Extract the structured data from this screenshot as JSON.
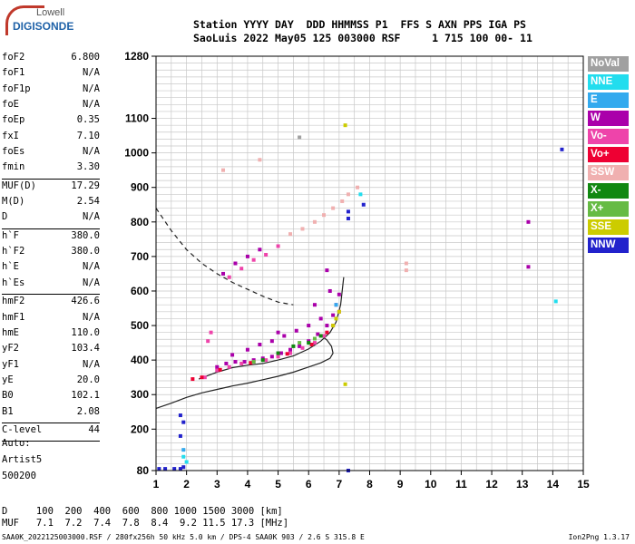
{
  "logo": {
    "line1": "Lowell",
    "line2": "DIGISONDE"
  },
  "header": {
    "line1": "Station YYYY DAY  DDD HHMMSS P1  FFS S AXN PPS IGA PS",
    "line2": "SaoLuis 2022 May05 125 003000 RSF     1 715 100 00- 11"
  },
  "params": [
    {
      "name": "foF2",
      "value": "6.800"
    },
    {
      "name": "foF1",
      "value": "N/A"
    },
    {
      "name": "foF1p",
      "value": "N/A"
    },
    {
      "name": "foE",
      "value": "N/A"
    },
    {
      "name": "foEp",
      "value": "0.35"
    },
    {
      "name": "fxI",
      "value": "7.10"
    },
    {
      "name": "foEs",
      "value": "N/A"
    },
    {
      "name": "fmin",
      "value": "3.30"
    },
    {
      "sep": true
    },
    {
      "name": "MUF(D)",
      "value": "17.29"
    },
    {
      "name": "M(D)",
      "value": "2.54"
    },
    {
      "name": "D",
      "value": "N/A"
    },
    {
      "sep": true
    },
    {
      "name": "h`F",
      "value": "380.0"
    },
    {
      "name": "h`F2",
      "value": "380.0"
    },
    {
      "name": "h`E",
      "value": "N/A"
    },
    {
      "name": "h`Es",
      "value": "N/A"
    },
    {
      "sep": true
    },
    {
      "name": "hmF2",
      "value": "426.6"
    },
    {
      "name": "hmF1",
      "value": "N/A"
    },
    {
      "name": "hmE",
      "value": "110.0"
    },
    {
      "name": "yF2",
      "value": "103.4"
    },
    {
      "name": "yF1",
      "value": "N/A"
    },
    {
      "name": "yE",
      "value": "20.0"
    },
    {
      "name": "B0",
      "value": "102.1"
    },
    {
      "name": "B1",
      "value": "2.08"
    },
    {
      "sep": true
    },
    {
      "name": "C-level",
      "value": "44"
    },
    {
      "sep": true
    }
  ],
  "auto": {
    "line1": "Auto:",
    "line2": "Artist5",
    "line3": "500200"
  },
  "bottom": {
    "line1": "D     100  200  400  600  800 1000 1500 3000 [km]",
    "line2": "MUF   7.1  7.2  7.4  7.8  8.4  9.2 11.5 17.3 [MHz]"
  },
  "footer": {
    "left": "SAA0K_2022125003000.RSF / 280fx256h 50 kHz 5.0 km / DPS-4 SAA0K 903 / 2.6 S 315.8 E",
    "right": "Ion2Png 1.3.17"
  },
  "legend": [
    {
      "label": "NoVal",
      "color": "#a0a0a0"
    },
    {
      "label": "NNE",
      "color": "#22ddee"
    },
    {
      "label": "E",
      "color": "#33aaee"
    },
    {
      "label": "W",
      "color": "#aa00aa"
    },
    {
      "label": "Vo-",
      "color": "#ee44aa"
    },
    {
      "label": "Vo+",
      "color": "#ee0033"
    },
    {
      "label": "SSW",
      "color": "#f0b0b0"
    },
    {
      "label": "X-",
      "color": "#118811"
    },
    {
      "label": "X+",
      "color": "#66bb44"
    },
    {
      "label": "SSE",
      "color": "#cccc00"
    },
    {
      "label": "NNW",
      "color": "#2222cc"
    }
  ],
  "chart_data": {
    "type": "scatter",
    "title": "",
    "xlabel": "",
    "ylabel": "",
    "xlim": [
      1,
      15
    ],
    "ylim": [
      80,
      1280
    ],
    "x_ticks": [
      1,
      2,
      3,
      4,
      5,
      6,
      7,
      8,
      9,
      10,
      11,
      12,
      13,
      14,
      15
    ],
    "y_ticks": [
      80,
      200,
      300,
      400,
      500,
      600,
      700,
      800,
      900,
      1000,
      1100,
      1280
    ],
    "grid": true,
    "series": [
      {
        "name": "W",
        "color": "#aa00aa",
        "points": [
          [
            3.0,
            380
          ],
          [
            3.3,
            390
          ],
          [
            3.6,
            395
          ],
          [
            3.9,
            395
          ],
          [
            4.2,
            400
          ],
          [
            4.5,
            405
          ],
          [
            4.8,
            410
          ],
          [
            5.1,
            420
          ],
          [
            5.4,
            430
          ],
          [
            5.7,
            440
          ],
          [
            6.0,
            455
          ],
          [
            6.3,
            475
          ],
          [
            6.6,
            500
          ],
          [
            6.8,
            530
          ],
          [
            6.9,
            560
          ],
          [
            7.0,
            590
          ],
          [
            4.0,
            430
          ],
          [
            4.4,
            445
          ],
          [
            4.8,
            455
          ],
          [
            5.2,
            470
          ],
          [
            5.6,
            485
          ],
          [
            6.0,
            500
          ],
          [
            3.5,
            415
          ],
          [
            5.0,
            480
          ],
          [
            6.4,
            520
          ],
          [
            6.7,
            600
          ],
          [
            6.6,
            660
          ],
          [
            6.2,
            560
          ],
          [
            3.2,
            650
          ],
          [
            3.6,
            680
          ],
          [
            4.0,
            700
          ],
          [
            4.4,
            720
          ],
          [
            13.2,
            800
          ],
          [
            13.2,
            670
          ]
        ]
      },
      {
        "name": "Vo-",
        "color": "#ee44aa",
        "points": [
          [
            2.6,
            350
          ],
          [
            3.0,
            370
          ],
          [
            3.4,
            380
          ],
          [
            3.8,
            390
          ],
          [
            4.2,
            395
          ],
          [
            4.6,
            400
          ],
          [
            5.0,
            410
          ],
          [
            5.4,
            420
          ],
          [
            5.8,
            435
          ],
          [
            6.2,
            450
          ],
          [
            6.5,
            470
          ],
          [
            6.8,
            500
          ],
          [
            7.0,
            540
          ],
          [
            3.4,
            640
          ],
          [
            3.8,
            665
          ],
          [
            4.2,
            690
          ],
          [
            4.6,
            705
          ],
          [
            5.0,
            730
          ],
          [
            2.8,
            480
          ],
          [
            2.7,
            455
          ]
        ]
      },
      {
        "name": "Vo+",
        "color": "#ee0033",
        "points": [
          [
            2.2,
            345
          ],
          [
            2.5,
            350
          ],
          [
            3.1,
            372
          ],
          [
            4.1,
            392
          ],
          [
            5.3,
            418
          ],
          [
            6.1,
            445
          ],
          [
            6.6,
            480
          ]
        ]
      },
      {
        "name": "SSW",
        "color": "#f0b0b0",
        "points": [
          [
            5.4,
            765
          ],
          [
            5.8,
            780
          ],
          [
            6.2,
            800
          ],
          [
            6.5,
            820
          ],
          [
            6.8,
            840
          ],
          [
            7.1,
            860
          ],
          [
            7.3,
            880
          ],
          [
            7.6,
            900
          ],
          [
            9.2,
            660
          ],
          [
            9.2,
            680
          ],
          [
            3.2,
            950
          ],
          [
            4.4,
            980
          ]
        ]
      },
      {
        "name": "X-",
        "color": "#118811",
        "points": [
          [
            4.5,
            400
          ],
          [
            5.0,
            420
          ],
          [
            5.5,
            440
          ],
          [
            6.0,
            450
          ],
          [
            6.4,
            470
          ]
        ]
      },
      {
        "name": "X+",
        "color": "#66bb44",
        "points": [
          [
            4.2,
            395
          ],
          [
            5.7,
            450
          ],
          [
            6.2,
            462
          ]
        ]
      },
      {
        "name": "SSE",
        "color": "#cccc00",
        "points": [
          [
            6.8,
            500
          ],
          [
            7.0,
            540
          ],
          [
            7.2,
            1080
          ],
          [
            7.2,
            330
          ],
          [
            6.9,
            520
          ]
        ]
      },
      {
        "name": "NNE",
        "color": "#22ddee",
        "points": [
          [
            7.7,
            880
          ],
          [
            14.1,
            570
          ],
          [
            1.9,
            120
          ],
          [
            2.0,
            105
          ]
        ]
      },
      {
        "name": "E",
        "color": "#33aaee",
        "points": [
          [
            6.9,
            560
          ],
          [
            1.9,
            140
          ]
        ]
      },
      {
        "name": "NNW",
        "color": "#2222cc",
        "points": [
          [
            1.1,
            85
          ],
          [
            1.3,
            85
          ],
          [
            1.6,
            85
          ],
          [
            1.8,
            85
          ],
          [
            1.8,
            180
          ],
          [
            1.8,
            240
          ],
          [
            1.9,
            220
          ],
          [
            1.9,
            90
          ],
          [
            7.3,
            830
          ],
          [
            7.3,
            810
          ],
          [
            7.3,
            80
          ],
          [
            7.8,
            850
          ],
          [
            14.3,
            1010
          ]
        ]
      },
      {
        "name": "NoVal",
        "color": "#a0a0a0",
        "points": [
          [
            5.7,
            1045
          ]
        ]
      }
    ],
    "curves": [
      {
        "name": "profile",
        "style": "solid",
        "points": [
          [
            1.0,
            260
          ],
          [
            1.5,
            275
          ],
          [
            2.0,
            292
          ],
          [
            2.5,
            305
          ],
          [
            3.0,
            315
          ],
          [
            3.5,
            325
          ],
          [
            4.0,
            333
          ],
          [
            4.5,
            343
          ],
          [
            5.0,
            353
          ],
          [
            5.5,
            365
          ],
          [
            6.0,
            380
          ],
          [
            6.4,
            392
          ],
          [
            6.7,
            405
          ],
          [
            6.8,
            420
          ],
          [
            6.75,
            440
          ],
          [
            6.6,
            458
          ],
          [
            6.5,
            465
          ]
        ]
      },
      {
        "name": "extrapolated",
        "style": "dashed",
        "points": [
          [
            1.0,
            840
          ],
          [
            1.5,
            775
          ],
          [
            2.0,
            720
          ],
          [
            2.5,
            680
          ],
          [
            3.0,
            650
          ],
          [
            3.5,
            625
          ],
          [
            4.0,
            605
          ],
          [
            4.5,
            585
          ],
          [
            5.0,
            568
          ],
          [
            5.5,
            560
          ]
        ]
      },
      {
        "name": "O-trace",
        "style": "solid",
        "points": [
          [
            2.4,
            345
          ],
          [
            3.0,
            365
          ],
          [
            3.5,
            378
          ],
          [
            4.0,
            385
          ],
          [
            4.5,
            390
          ],
          [
            5.0,
            400
          ],
          [
            5.5,
            412
          ],
          [
            6.0,
            432
          ],
          [
            6.4,
            455
          ],
          [
            6.7,
            480
          ],
          [
            6.9,
            510
          ],
          [
            7.05,
            560
          ],
          [
            7.1,
            600
          ],
          [
            7.15,
            640
          ]
        ]
      }
    ]
  }
}
